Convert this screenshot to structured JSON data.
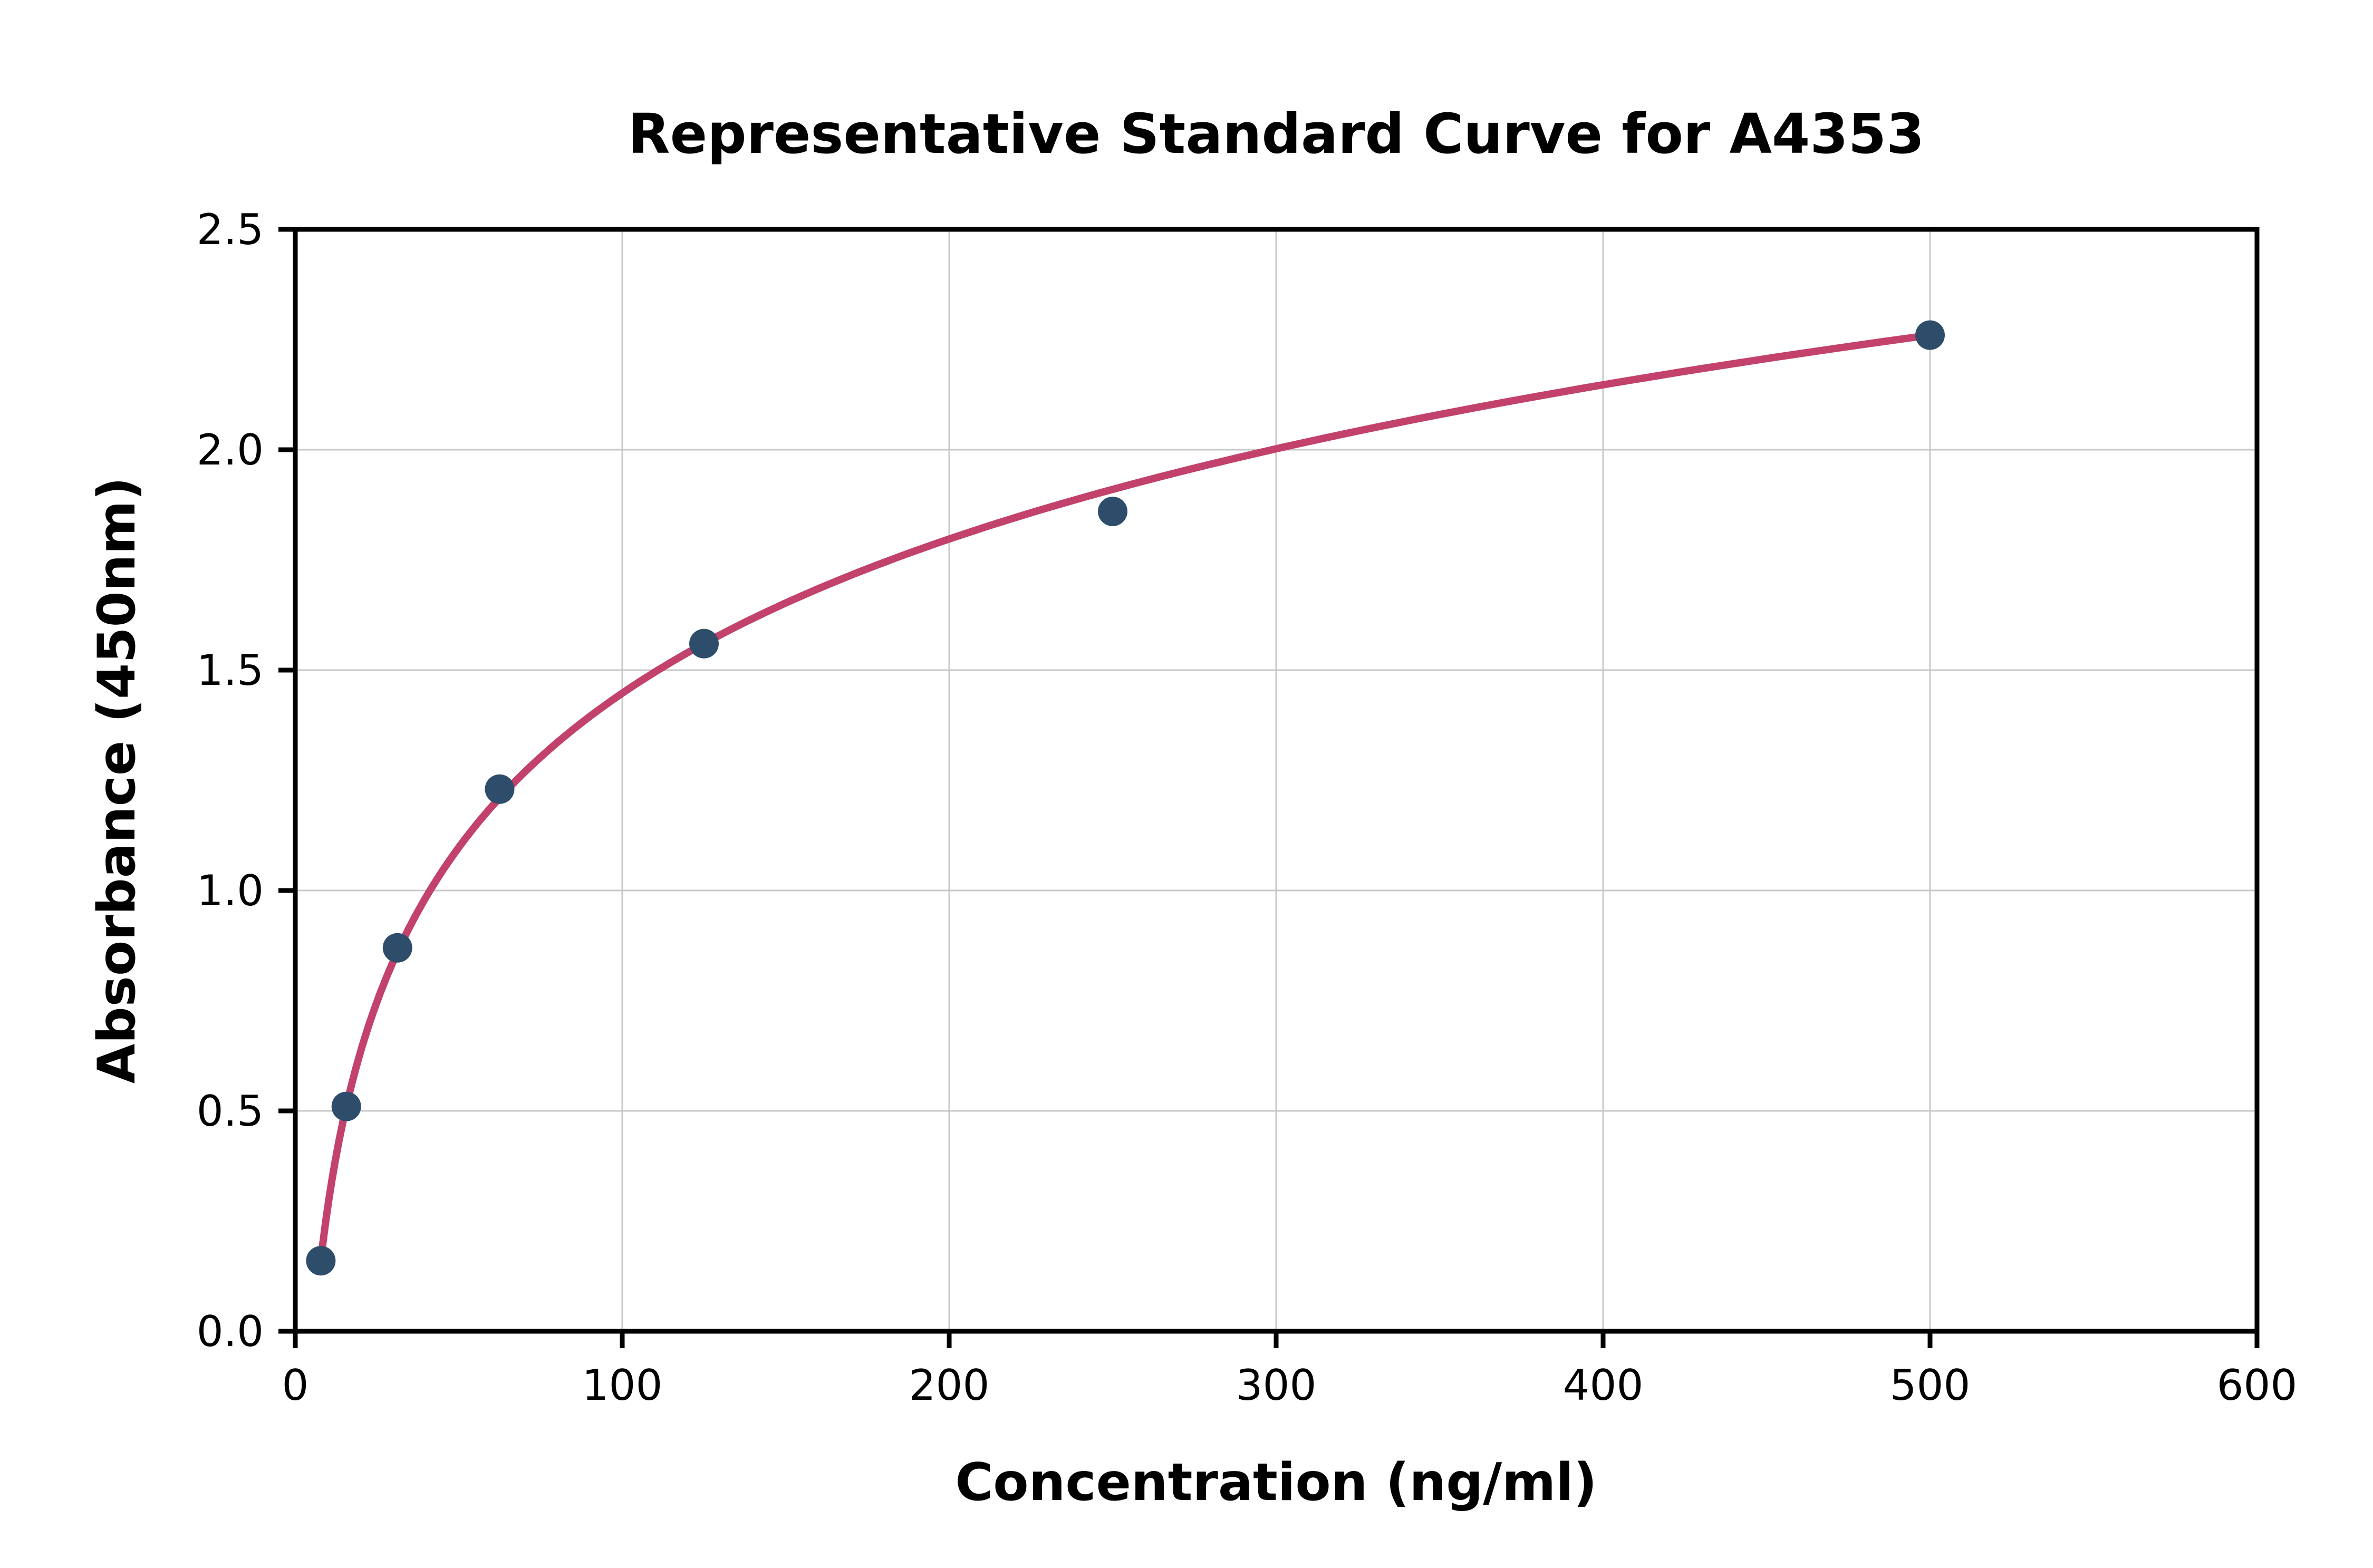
{
  "chart_data": {
    "type": "scatter",
    "title": "Representative Standard Curve for A4353",
    "xlabel": "Concentration (ng/ml)",
    "ylabel": "Absorbance (450nm)",
    "xlim": [
      0,
      600
    ],
    "ylim": [
      0,
      2.5
    ],
    "x_ticks": [
      0,
      100,
      200,
      300,
      400,
      500,
      600
    ],
    "x_tick_labels": [
      "0",
      "100",
      "200",
      "300",
      "400",
      "500",
      "600"
    ],
    "y_ticks": [
      0.0,
      0.5,
      1.0,
      1.5,
      2.0,
      2.5
    ],
    "y_tick_labels": [
      "0.0",
      "0.5",
      "1.0",
      "1.5",
      "2.0",
      "2.5"
    ],
    "grid": true,
    "legend": "none",
    "points": {
      "x": [
        7.8,
        15.6,
        31.25,
        62.5,
        125,
        250,
        500
      ],
      "y": [
        0.16,
        0.51,
        0.87,
        1.23,
        1.56,
        1.86,
        2.26
      ]
    },
    "fit_curve": {
      "model": "y = a*ln(x) + b",
      "a": 0.5047,
      "b": -0.8766,
      "x_start": 7.8,
      "x_end": 503
    },
    "colors": {
      "curve": "#c2426b",
      "points": "#2e4d6b",
      "grid": "#c8c8c8",
      "axis": "#000000",
      "background": "#ffffff"
    }
  }
}
